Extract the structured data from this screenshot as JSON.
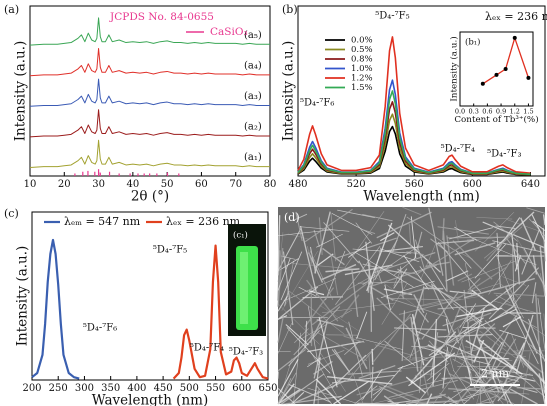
{
  "chart_data": [
    {
      "type": "line",
      "label": "(a)",
      "xlabel": "2θ (°)",
      "ylabel": "Intensity (a.u.)",
      "xlim": [
        10,
        80
      ],
      "xticks": [
        10,
        20,
        30,
        40,
        50,
        60,
        70,
        80
      ],
      "ylim": [
        0,
        100
      ],
      "annotations": [
        "JCPDS No. 84-0655"
      ],
      "x": [
        10,
        14,
        18,
        20,
        22,
        24,
        25,
        26,
        27,
        28,
        29,
        29.5,
        30,
        30.5,
        31,
        32,
        33,
        34,
        36,
        38,
        40,
        42,
        44,
        46,
        48,
        50,
        52,
        54,
        56,
        58,
        60,
        62,
        64,
        66,
        68,
        70,
        72,
        74,
        76,
        78,
        80
      ],
      "series": [
        {
          "name": "(a₁)",
          "color": "#a3a231",
          "values": [
            5,
            5.5,
            5.5,
            6,
            6.5,
            9,
            11,
            7,
            12,
            8,
            7,
            9,
            21,
            10,
            7,
            7,
            11,
            7,
            8,
            6.5,
            7,
            6.5,
            7,
            6,
            7,
            7.5,
            6.5,
            6.5,
            6,
            6.5,
            6,
            6.5,
            6,
            6,
            6,
            6,
            5.5,
            6,
            5.5,
            5.5,
            5.5
          ]
        },
        {
          "name": "(a₂)",
          "color": "#9b1c1c",
          "values": [
            23,
            23.5,
            23.5,
            24,
            24.5,
            27,
            29,
            25,
            30,
            26,
            25,
            27,
            39,
            28,
            25,
            25,
            29,
            25,
            26,
            24.5,
            25,
            24.5,
            25,
            24,
            25,
            25.5,
            24.5,
            24.5,
            24,
            24.5,
            24,
            24.5,
            24,
            24,
            24,
            24,
            23.5,
            24,
            23.5,
            23.5,
            23.5
          ]
        },
        {
          "name": "(a₃)",
          "color": "#3b5bb5",
          "values": [
            41,
            41.5,
            41.5,
            42,
            42.5,
            45,
            47,
            43,
            48,
            44,
            43,
            45,
            57,
            46,
            43,
            43,
            47,
            43,
            44,
            42.5,
            43,
            42.5,
            43,
            42,
            43,
            43.5,
            42.5,
            42.5,
            42,
            42.5,
            42,
            42.5,
            42,
            42,
            42,
            42,
            41.5,
            42,
            41.5,
            41.5,
            41.5
          ]
        },
        {
          "name": "(a₄)",
          "color": "#e0302a",
          "values": [
            59,
            59.5,
            59.5,
            60,
            60.5,
            63,
            65,
            61,
            66,
            62,
            61,
            63,
            75,
            64,
            61,
            61,
            65,
            61,
            62,
            60.5,
            61,
            60.5,
            61,
            60,
            61,
            61.5,
            60.5,
            60.5,
            60,
            60.5,
            60,
            60.5,
            60,
            60,
            60,
            60,
            59.5,
            60,
            59.5,
            59.5,
            59.5
          ]
        },
        {
          "name": "(a₅)",
          "color": "#3aa655",
          "values": [
            77,
            77.5,
            77.5,
            78,
            78.5,
            81,
            83,
            79,
            84,
            80,
            79,
            81,
            93,
            82,
            79,
            79,
            83,
            79,
            80,
            78.5,
            79,
            78.5,
            79,
            78,
            79,
            79.5,
            78.5,
            78.5,
            78,
            78.5,
            78,
            78.5,
            78,
            78,
            78,
            78,
            77.5,
            78,
            77.5,
            77.5,
            77.5
          ]
        }
      ],
      "reference": {
        "name": "CaSiO₃",
        "color": "#e8388f",
        "x": [
          23.1,
          25.4,
          26.9,
          28.9,
          30.0,
          30.5,
          33.2,
          36.0,
          39.2,
          41.5,
          43.3,
          44.9,
          47.0,
          50.1,
          53.4
        ],
        "values": [
          1.5,
          2.5,
          3,
          2.5,
          4,
          2,
          2.5,
          1.5,
          1.5,
          1.5,
          1.5,
          1.5,
          1.5,
          2,
          1.5
        ]
      }
    },
    {
      "type": "line",
      "label": "(b)",
      "xlabel": "Wavelength (nm)",
      "ylabel": "Intensity (a.u.)",
      "xlim": [
        480,
        650
      ],
      "xticks": [
        480,
        520,
        560,
        600,
        640
      ],
      "ylim": [
        0,
        110
      ],
      "legend": "upper-left",
      "annotations": [
        "⁵D₄-⁷F₆",
        "⁵D₄-⁷F₅",
        "⁵D₄-⁷F₄",
        "⁵D₄-⁷F₃",
        "λₑₓ = 236 nm"
      ],
      "x": [
        480,
        484,
        488,
        490,
        492,
        496,
        500,
        510,
        520,
        530,
        536,
        540,
        543,
        545,
        547,
        550,
        554,
        560,
        570,
        580,
        584,
        586,
        588,
        592,
        600,
        610,
        618,
        621,
        624,
        630,
        640
      ],
      "series": [
        {
          "name": "0.0%",
          "color": "#000000",
          "values": [
            1.3,
            3.8,
            9.6,
            11.5,
            9.6,
            5.1,
            2.6,
            1.3,
            1.3,
            1.9,
            4.8,
            16,
            28.8,
            32,
            27.2,
            14.4,
            6.4,
            2.6,
            1.3,
            2.6,
            4.5,
            4.8,
            3.8,
            2.2,
            1,
            1,
            2.2,
            2.6,
            1.9,
            1,
            0.6
          ]
        },
        {
          "name": "0.5%",
          "color": "#8a8a20",
          "values": [
            1.6,
            4.8,
            12,
            14.4,
            12,
            6.4,
            3.2,
            1.6,
            1.6,
            2.4,
            6,
            20,
            36,
            40,
            34,
            18,
            8,
            3.2,
            1.6,
            3.2,
            5.6,
            6,
            4.8,
            2.8,
            1.2,
            1.2,
            2.8,
            3.2,
            2.4,
            1.2,
            0.8
          ]
        },
        {
          "name": "0.8%",
          "color": "#8b1a1a",
          "values": [
            1.9,
            5.8,
            14.4,
            17.3,
            14.4,
            7.7,
            3.8,
            1.9,
            1.9,
            2.9,
            7.2,
            24,
            43.2,
            48,
            40.8,
            21.6,
            9.6,
            3.8,
            1.9,
            3.8,
            6.7,
            7.2,
            5.8,
            3.4,
            1.4,
            1.4,
            3.4,
            3.8,
            2.9,
            1.4,
            1
          ]
        },
        {
          "name": "1.0%",
          "color": "#3355cc",
          "values": [
            2.5,
            7.4,
            18.6,
            22.3,
            18.6,
            9.9,
            5,
            2.5,
            2.5,
            3.7,
            9.3,
            31,
            55.8,
            62,
            52.7,
            27.9,
            12.4,
            5,
            2.5,
            5,
            8.7,
            9.3,
            7.4,
            4.3,
            1.9,
            1.9,
            4.3,
            5,
            3.7,
            1.9,
            1.2
          ]
        },
        {
          "name": "1.2%",
          "color": "#e03020",
          "values": [
            3.6,
            10.8,
            27,
            32.4,
            27,
            14.4,
            7.2,
            3.6,
            3.6,
            5.4,
            13.5,
            45,
            81,
            90,
            76.5,
            40.5,
            18,
            7.2,
            3.6,
            7.2,
            12.6,
            13.5,
            10.8,
            6.3,
            2.7,
            2.7,
            6.3,
            7.2,
            5.4,
            2.7,
            1.8
          ]
        },
        {
          "name": "1.5%",
          "color": "#33aa55",
          "values": [
            2.2,
            6.6,
            16.5,
            19.8,
            16.5,
            8.8,
            4.4,
            2.2,
            2.2,
            3.3,
            8.3,
            27.5,
            49.5,
            55,
            46.8,
            24.8,
            11,
            4.4,
            2.2,
            4.4,
            7.7,
            8.3,
            6.6,
            3.9,
            1.7,
            1.7,
            3.9,
            4.4,
            3.3,
            1.7,
            1.1
          ]
        }
      ]
    },
    {
      "type": "line",
      "label": "(b₁)",
      "xlabel": "Content of Tb³⁺(%)",
      "ylabel": "Intensity (a.u.)",
      "xlim": [
        0,
        1.6
      ],
      "xticks": [
        {
          "value": 0,
          "label": "0.0"
        },
        0.3,
        0.6,
        0.9,
        1.2,
        1.5
      ],
      "ylim": [
        0,
        1
      ],
      "x": [
        0.5,
        0.8,
        1.0,
        1.2,
        1.5
      ],
      "series": [
        {
          "color": "#e03020",
          "marker_color": "#000000",
          "values": [
            0.3,
            0.42,
            0.5,
            0.92,
            0.38
          ]
        }
      ]
    },
    {
      "type": "line",
      "label": "(c)",
      "xlabel": "Wavelength (nm)",
      "ylabel": "Intensity (a.u.)",
      "xlim": [
        200,
        650
      ],
      "xticks": [
        200,
        250,
        300,
        350,
        400,
        450,
        500,
        550,
        600,
        650
      ],
      "ylim": [
        0,
        120
      ],
      "annotations": [
        "⁵D₄-⁷F₆",
        "⁵D₄-⁷F₅",
        "⁵D₄-⁷F₄",
        "⁵D₄-⁷F₃"
      ],
      "inset_label": "(c₁)",
      "series": [
        {
          "name": "λₑₘ = 547 nm",
          "color": "#3a5fb0",
          "x": [
            200,
            210,
            220,
            225,
            230,
            235,
            240,
            245,
            250,
            255,
            260,
            270,
            280,
            290
          ],
          "values": [
            2,
            5,
            18,
            40,
            70,
            90,
            100,
            90,
            68,
            40,
            18,
            5,
            2,
            1
          ]
        },
        {
          "name": "λₑₓ = 236 nm",
          "color": "#e0401e",
          "x": [
            470,
            480,
            485,
            490,
            495,
            500,
            510,
            520,
            530,
            540,
            545,
            550,
            555,
            560,
            570,
            580,
            585,
            590,
            595,
            600,
            610,
            620,
            625,
            630,
            640,
            650
          ],
          "values": [
            1,
            5,
            16,
            32,
            36,
            28,
            8,
            2,
            3,
            22,
            70,
            96,
            70,
            20,
            4,
            6,
            14,
            16,
            12,
            5,
            3,
            9,
            12,
            8,
            2,
            1
          ]
        }
      ]
    }
  ],
  "image": {
    "label": "(d)",
    "scale_bar": "2 μm"
  }
}
